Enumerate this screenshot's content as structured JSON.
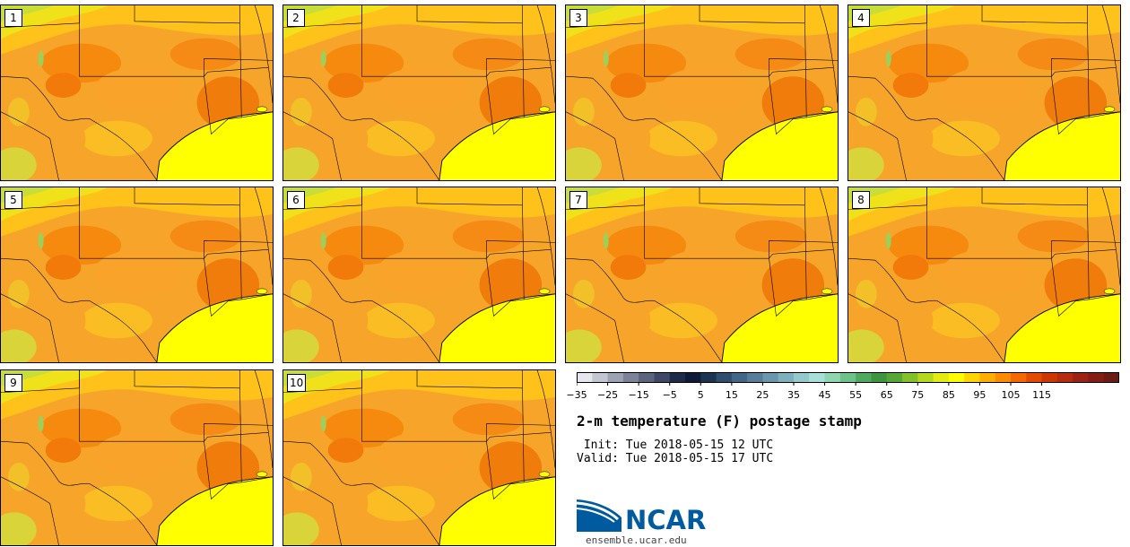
{
  "panels": [
    {
      "label": "1"
    },
    {
      "label": "2"
    },
    {
      "label": "3"
    },
    {
      "label": "4"
    },
    {
      "label": "5"
    },
    {
      "label": "6"
    },
    {
      "label": "7"
    },
    {
      "label": "8"
    },
    {
      "label": "9"
    },
    {
      "label": "10"
    }
  ],
  "colorbar": {
    "colors": [
      "#e6e6ee",
      "#c3c6d2",
      "#9ea3b4",
      "#7c8298",
      "#5c647d",
      "#3e4866",
      "#1e2a4a",
      "#0e1a38",
      "#1c3352",
      "#2f4d6c",
      "#426685",
      "#577e99",
      "#6b97ac",
      "#7fb1bc",
      "#94cacc",
      "#a7e0d8",
      "#8fd6b0",
      "#6cc28a",
      "#4faa60",
      "#3f9440",
      "#56a836",
      "#83c02a",
      "#b5d81e",
      "#e2ec12",
      "#fffb00",
      "#ffd400",
      "#ffae00",
      "#ff8a00",
      "#f56800",
      "#e34a00",
      "#ce3600",
      "#b62a10",
      "#9c2214",
      "#851c16",
      "#6e1a14"
    ],
    "tick_labels": [
      "−35",
      "−25",
      "−15",
      "−5",
      "5",
      "15",
      "25",
      "35",
      "45",
      "55",
      "65",
      "75",
      "85",
      "95",
      "105",
      "115"
    ]
  },
  "title": "2-m temperature (F) postage stamp",
  "init_line": " Init: Tue 2018-05-15 12 UTC",
  "valid_line": "Valid: Tue 2018-05-15 17 UTC",
  "logo": {
    "name": "NCAR",
    "url": "ensemble.ucar.edu",
    "color": "#005aa0"
  }
}
